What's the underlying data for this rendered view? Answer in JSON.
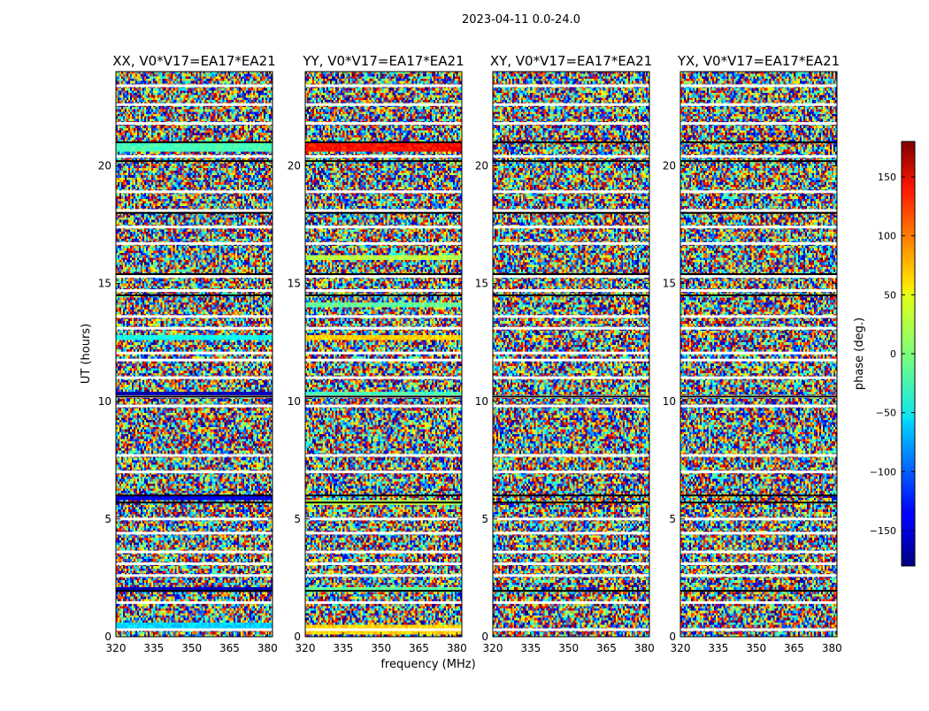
{
  "suptitle": "2023-04-11 0.0-24.0",
  "chart_data": {
    "type": "heatmap",
    "xlabel": "frequency (MHz)",
    "ylabel": "UT (hours)",
    "xlim": [
      320,
      382
    ],
    "ylim": [
      0,
      24
    ],
    "xticks": [
      320,
      335,
      350,
      365,
      380
    ],
    "yticks": [
      0,
      5,
      10,
      15,
      20
    ],
    "colorbar": {
      "label": "phase (deg.)",
      "range": [
        -180,
        180
      ],
      "ticks": [
        -150,
        -100,
        -50,
        0,
        50,
        100,
        150
      ],
      "colormap": "jet"
    },
    "panels": [
      {
        "title": "XX, V0*V17=EA17*EA21",
        "polarization": "XX"
      },
      {
        "title": "YY, V0*V17=EA17*EA21",
        "polarization": "YY"
      },
      {
        "title": "XY, V0*V17=EA17*EA21",
        "polarization": "XY"
      },
      {
        "title": "YX, V0*V17=EA17*EA21",
        "polarization": "YX"
      }
    ],
    "flagged_ut_hours": [
      0.3,
      1.45,
      2.6,
      3.1,
      3.6,
      4.4,
      5.0,
      7.0,
      7.7,
      9.8,
      10.2,
      11.0,
      11.75,
      12.05,
      13.1,
      13.6,
      14.7,
      15.3,
      16.7,
      17.4,
      18.1,
      18.9,
      20.4,
      21.8,
      22.6,
      23.4
    ],
    "uniform_bands": [
      {
        "panel": "XX",
        "ut": [
          20.7,
          21.0
        ],
        "phase": -20
      },
      {
        "panel": "XX",
        "ut": [
          12.6,
          12.8
        ],
        "phase": -40
      },
      {
        "panel": "XX",
        "ut": [
          10.2,
          10.35
        ],
        "phase": -160
      },
      {
        "panel": "XX",
        "ut": [
          5.8,
          6.0
        ],
        "phase": -140
      },
      {
        "panel": "XX",
        "ut": [
          1.9,
          2.05
        ],
        "phase": -160
      },
      {
        "panel": "XX",
        "ut": [
          0.35,
          0.6
        ],
        "phase": -60
      },
      {
        "panel": "YY",
        "ut": [
          20.7,
          21.0
        ],
        "phase": 130
      },
      {
        "panel": "YY",
        "ut": [
          16.0,
          16.2
        ],
        "phase": 20
      },
      {
        "panel": "YY",
        "ut": [
          14.0,
          14.2
        ],
        "phase": -10
      },
      {
        "panel": "YY",
        "ut": [
          12.6,
          12.8
        ],
        "phase": 60
      },
      {
        "panel": "YY",
        "ut": [
          10.2,
          10.35
        ],
        "phase": -20
      },
      {
        "panel": "YY",
        "ut": [
          5.6,
          5.8
        ],
        "phase": 20
      },
      {
        "panel": "YY",
        "ut": [
          1.9,
          2.1
        ],
        "phase": -10
      },
      {
        "panel": "YY",
        "ut": [
          0.1,
          0.5
        ],
        "phase": 60
      }
    ],
    "flagged_black_ut_hours": [
      21.0,
      20.2,
      18.0,
      15.4,
      14.5,
      10.2,
      6.0,
      5.7,
      1.95
    ]
  }
}
